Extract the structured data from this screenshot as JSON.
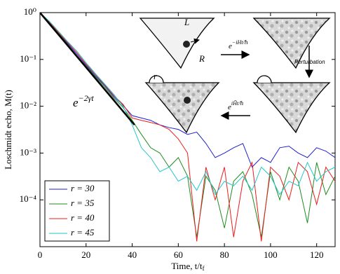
{
  "chart_data": {
    "type": "line",
    "yscale": "log",
    "x_label": {
      "text": "Time, t/t",
      "subscript": "f"
    },
    "y_label": "Loschmidt echo, M(t)",
    "xlim": [
      0,
      128
    ],
    "ylim": [
      1e-05,
      1
    ],
    "xticks": [
      0,
      20,
      40,
      60,
      80,
      100,
      120
    ],
    "yticks": [
      {
        "value": 0.0001,
        "label": "10⁻⁴"
      },
      {
        "value": 0.001,
        "label": "10⁻³"
      },
      {
        "value": 0.01,
        "label": "10⁻²"
      },
      {
        "value": 0.1,
        "label": "10⁻¹"
      },
      {
        "value": 1,
        "label": "10⁰"
      }
    ],
    "legend": "lower left",
    "x": [
      0,
      4,
      8,
      12,
      16,
      20,
      24,
      28,
      32,
      36,
      40,
      44,
      48,
      52,
      56,
      60,
      64,
      68,
      72,
      76,
      80,
      84,
      88,
      92,
      96,
      100,
      104,
      108,
      112,
      116,
      120,
      124,
      128
    ],
    "series": [
      {
        "name": "r = 30",
        "color": "#1f1fd0",
        "values": [
          1,
          0.63,
          0.37,
          0.22,
          0.13,
          0.076,
          0.045,
          0.028,
          0.016,
          0.0105,
          0.0063,
          0.0056,
          0.005,
          0.004,
          0.0035,
          0.0032,
          0.0025,
          0.0028,
          0.0016,
          0.0008,
          0.001,
          0.0013,
          0.0016,
          0.0005,
          0.0008,
          0.00063,
          0.0013,
          0.0014,
          0.001,
          0.0008,
          0.0013,
          0.0011,
          0.0008
        ]
      },
      {
        "name": "r = 35",
        "color": "#1e8c1e",
        "values": [
          1,
          0.6,
          0.36,
          0.21,
          0.12,
          0.072,
          0.043,
          0.026,
          0.015,
          0.0095,
          0.005,
          0.0025,
          0.0013,
          0.001,
          0.0005,
          0.0008,
          0.00032,
          1.6e-05,
          0.00032,
          0.00016,
          2.5e-05,
          0.00025,
          0.0004,
          0.00013,
          1.6e-05,
          0.0004,
          0.0001,
          0.0005,
          0.00025,
          3.2e-05,
          0.00063,
          0.00013,
          0.00032
        ]
      },
      {
        "name": "r = 40",
        "color": "#ee1c1c",
        "values": [
          1,
          0.64,
          0.38,
          0.23,
          0.14,
          0.08,
          0.048,
          0.029,
          0.017,
          0.011,
          0.0056,
          0.005,
          0.0045,
          0.004,
          0.0032,
          0.002,
          0.001,
          1.3e-05,
          0.0005,
          0.0001,
          0.0005,
          1.6e-05,
          0.00025,
          0.00063,
          1.3e-05,
          0.0005,
          0.00032,
          0.0001,
          0.00063,
          0.0004,
          8e-05,
          0.0005,
          0.00025
        ]
      },
      {
        "name": "r = 45",
        "color": "#22c6c6",
        "values": [
          1,
          0.66,
          0.4,
          0.24,
          0.15,
          0.085,
          0.05,
          0.03,
          0.018,
          0.01,
          0.004,
          0.0013,
          0.0008,
          0.0004,
          0.0005,
          0.00025,
          0.00032,
          0.00016,
          0.0004,
          0.00013,
          0.00025,
          0.0002,
          0.00032,
          0.00016,
          0.0005,
          0.00032,
          0.00013,
          0.00025,
          0.0002,
          0.00063,
          0.00025,
          0.0004,
          0.0005
        ]
      }
    ],
    "fit": {
      "color": "#000000",
      "x": [
        0,
        41
      ],
      "values": [
        1,
        0.004
      ],
      "label": {
        "base": "e",
        "exponent": "−2γt"
      }
    },
    "inset": {
      "L": "L",
      "R": "R",
      "r": "r",
      "forward": {
        "base": "e",
        "exponent": "−iHt/ℏ"
      },
      "perturbation": "Perturbation",
      "backward": {
        "base": "e",
        "exponent": "iH̃t/ℏ"
      }
    }
  }
}
